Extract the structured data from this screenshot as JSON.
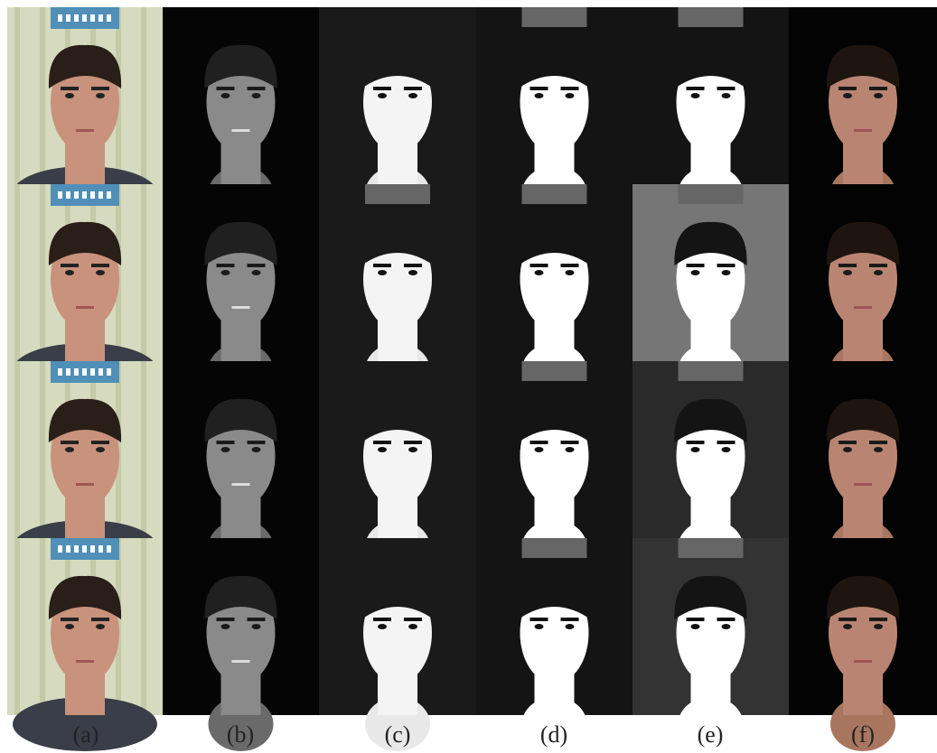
{
  "panel_labels": [
    "(a)",
    "(b)",
    "(c)",
    "(d)",
    "(e)",
    "(f)"
  ]
}
